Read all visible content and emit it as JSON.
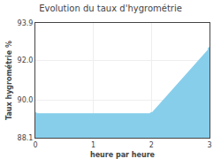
{
  "chart_data": {
    "type": "area",
    "title": "Evolution du taux d'hygrométrie",
    "xlabel": "heure par heure",
    "ylabel": "Taux hygrométrie %",
    "x": [
      0,
      2,
      3
    ],
    "values": [
      89.3,
      89.3,
      92.6
    ],
    "xlim": [
      0,
      3
    ],
    "ylim": [
      88.1,
      93.9
    ],
    "xticks": [
      0,
      1,
      2,
      3
    ],
    "yticks": [
      88.1,
      {
        "value": 90.0,
        "label": "90.0"
      },
      {
        "value": 92.0,
        "label": "92.0"
      },
      93.9
    ],
    "color": "#87CEEB",
    "marker": "circle",
    "grid": true
  }
}
